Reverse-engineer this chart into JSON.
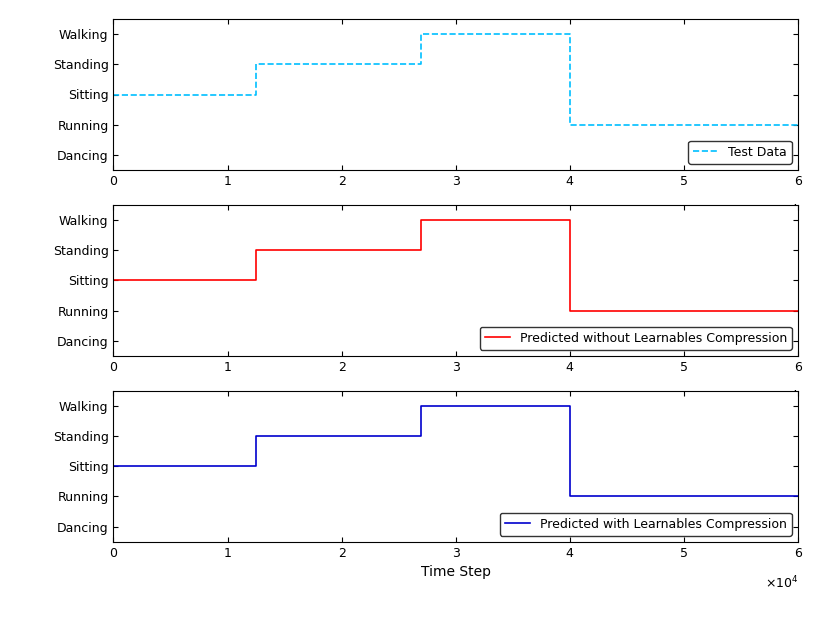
{
  "categories": [
    "Dancing",
    "Running",
    "Sitting",
    "Standing",
    "Walking"
  ],
  "ytick_values": [
    1,
    2,
    3,
    4,
    5
  ],
  "xlim": [
    0,
    60000
  ],
  "ylim": [
    0.5,
    5.5
  ],
  "xticks": [
    0,
    10000,
    20000,
    30000,
    40000,
    50000,
    60000
  ],
  "xtick_labels": [
    "0",
    "1",
    "2",
    "3",
    "4",
    "5",
    "6"
  ],
  "test_data_x": [
    0,
    12500,
    12500,
    27000,
    27000,
    40000,
    40000,
    60000
  ],
  "test_data_y": [
    3,
    3,
    4,
    4,
    5,
    5,
    2,
    2
  ],
  "test_data_color": "#00BFFF",
  "test_data_linestyle": "--",
  "test_data_label": "Test Data",
  "pred1_x": [
    0,
    12500,
    12500,
    27000,
    27000,
    40000,
    40000,
    48000,
    48000,
    60000
  ],
  "pred1_y": [
    3,
    3,
    4,
    4,
    5,
    5,
    2,
    2,
    2,
    2
  ],
  "pred1_color": "#FF0000",
  "pred1_linestyle": "-",
  "pred1_label": "Predicted without Learnables Compression",
  "pred2_x": [
    0,
    12500,
    12500,
    27000,
    27000,
    40000,
    40000,
    48000,
    48000,
    60000
  ],
  "pred2_y": [
    3,
    3,
    4,
    4,
    5,
    5,
    2,
    2,
    2,
    2
  ],
  "pred2_color": "#0000CD",
  "pred2_linestyle": "-",
  "pred2_label": "Predicted with Learnables Compression",
  "xlabel": "Time Step",
  "legend_loc": "lower right",
  "linewidth": 1.2,
  "figure_bg": "#FFFFFF",
  "font_size": 9,
  "title_font_size": 10,
  "xlabel_font_size": 10
}
